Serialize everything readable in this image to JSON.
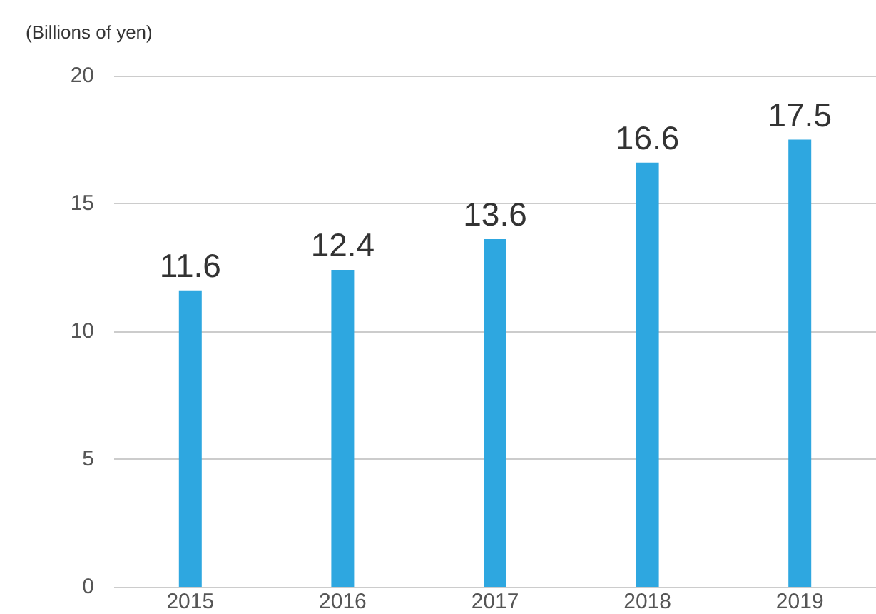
{
  "chart_data": {
    "type": "bar",
    "ylabel": "(Billions of yen)",
    "categories": [
      "2015",
      "2016",
      "2017",
      "2018",
      "2019"
    ],
    "values": [
      11.6,
      12.4,
      13.6,
      16.6,
      17.5
    ],
    "color": "#2ea7e0",
    "ylim": [
      0,
      20
    ],
    "yticks": [
      0,
      5,
      10,
      15,
      20
    ],
    "grid": "y",
    "data_labels": true
  }
}
